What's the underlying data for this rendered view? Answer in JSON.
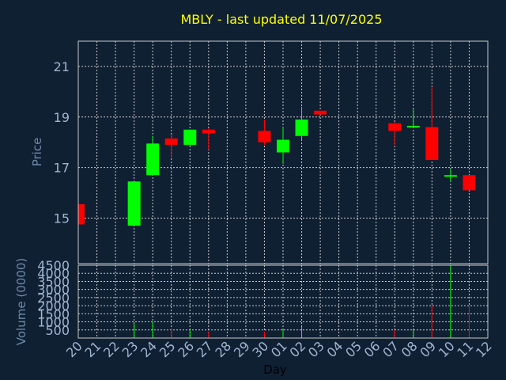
{
  "chart_data": {
    "type": "candlestick",
    "title": "MBLY - last updated 11/07/2025",
    "xlabel": "Day",
    "ylabel_price": "Price",
    "ylabel_volume": "Volume (0000)",
    "x_tick_labels": [
      "20",
      "21",
      "22",
      "23",
      "24",
      "25",
      "26",
      "27",
      "28",
      "29",
      "30",
      "01",
      "02",
      "03",
      "04",
      "05",
      "06",
      "07",
      "08",
      "09",
      "10",
      "11",
      "12"
    ],
    "price_ylim": [
      13.2,
      22.0
    ],
    "price_yticks": [
      15,
      17,
      19,
      21
    ],
    "volume_ylim": [
      0,
      4500
    ],
    "volume_yticks": [
      500,
      1000,
      1500,
      2000,
      2500,
      3000,
      3500,
      4000,
      4500
    ],
    "grid": true,
    "colors": {
      "up": "#00ff00",
      "down": "#ff0000",
      "title": "#ffff00",
      "background": "#0f2033"
    },
    "candles": [
      {
        "i": 0,
        "open": 15.55,
        "close": 14.75,
        "high": 15.55,
        "low": 14.75,
        "volume": 0
      },
      {
        "i": 3,
        "open": 14.7,
        "close": 16.45,
        "high": 16.45,
        "low": 14.7,
        "volume": 900
      },
      {
        "i": 4,
        "open": 16.7,
        "close": 17.95,
        "high": 18.25,
        "low": 16.7,
        "volume": 1000
      },
      {
        "i": 5,
        "open": 18.15,
        "close": 17.9,
        "high": 18.3,
        "low": 17.4,
        "volume": 600
      },
      {
        "i": 6,
        "open": 17.9,
        "close": 18.5,
        "high": 18.5,
        "low": 17.85,
        "volume": 500
      },
      {
        "i": 7,
        "open": 18.5,
        "close": 18.35,
        "high": 18.55,
        "low": 17.7,
        "volume": 400
      },
      {
        "i": 10,
        "open": 18.45,
        "close": 18.0,
        "high": 18.9,
        "low": 17.9,
        "volume": 400
      },
      {
        "i": 11,
        "open": 17.6,
        "close": 18.1,
        "high": 18.6,
        "low": 17.15,
        "volume": 500
      },
      {
        "i": 12,
        "open": 18.25,
        "close": 18.9,
        "high": 19.4,
        "low": 18.1,
        "volume": 700
      },
      {
        "i": 13,
        "open": 19.25,
        "close": 19.1,
        "high": 19.25,
        "low": 19.1,
        "volume": 0
      },
      {
        "i": 17,
        "open": 18.75,
        "close": 18.45,
        "high": 18.8,
        "low": 17.9,
        "volume": 500
      },
      {
        "i": 18,
        "open": 18.6,
        "close": 18.65,
        "high": 19.3,
        "low": 18.6,
        "volume": 500
      },
      {
        "i": 19,
        "open": 18.6,
        "close": 17.3,
        "high": 20.2,
        "low": 17.3,
        "volume": 2000
      },
      {
        "i": 20,
        "open": 16.65,
        "close": 16.7,
        "high": 16.95,
        "low": 16.45,
        "volume": 4500
      },
      {
        "i": 21,
        "open": 16.7,
        "close": 16.1,
        "high": 16.7,
        "low": 16.1,
        "volume": 2000
      }
    ]
  }
}
